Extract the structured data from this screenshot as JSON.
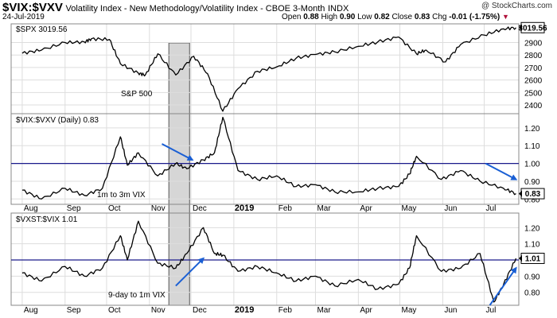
{
  "header": {
    "symbol": "$VIX:$VXV",
    "description": "Volatility Index - New Methodology/Volatility Index - CBOE 3-Month",
    "exchange": "INDX",
    "date": "24-Jul-2019",
    "open_label": "Open",
    "open": "0.88",
    "high_label": "High",
    "high": "0.90",
    "low_label": "Low",
    "low": "0.82",
    "close_label": "Close",
    "close": "0.83",
    "chg_label": "Chg",
    "chg": "-0.01 (-1.75%)",
    "down_marker": "▼",
    "brand": "@ StockCharts.com"
  },
  "chart_data": [
    {
      "type": "line",
      "legend": "$SPX 3019.56",
      "annotation": "S&P 500",
      "last_value_label": "3019.56",
      "y_ticks": [
        "2900",
        "2800",
        "2700",
        "2600",
        "2500",
        "2400"
      ],
      "ylim": [
        2330,
        3050
      ],
      "x": [
        "2018-08-01",
        "2018-08-15",
        "2018-09-01",
        "2018-09-15",
        "2018-09-20",
        "2018-10-03",
        "2018-10-11",
        "2018-10-24",
        "2018-10-29",
        "2018-11-07",
        "2018-11-20",
        "2018-12-03",
        "2018-12-13",
        "2018-12-24",
        "2019-01-04",
        "2019-01-18",
        "2019-02-01",
        "2019-02-15",
        "2019-03-01",
        "2019-03-15",
        "2019-04-01",
        "2019-04-15",
        "2019-04-30",
        "2019-05-13",
        "2019-05-20",
        "2019-06-03",
        "2019-06-14",
        "2019-07-01",
        "2019-07-15",
        "2019-07-24"
      ],
      "values": [
        2815,
        2840,
        2900,
        2905,
        2930,
        2925,
        2730,
        2655,
        2640,
        2810,
        2640,
        2790,
        2650,
        2350,
        2530,
        2670,
        2705,
        2775,
        2805,
        2825,
        2870,
        2905,
        2945,
        2810,
        2840,
        2745,
        2885,
        2960,
        3010,
        3019.56
      ]
    },
    {
      "type": "line",
      "legend": "$VIX:$VXV (Daily) 0.83",
      "annotation": "1m to 3m VIX",
      "last_value_label": "0.83",
      "reference_line": 1.0,
      "y_ticks": [
        "1.20",
        "1.10",
        "1.00",
        "0.90",
        "0.80"
      ],
      "ylim": [
        0.77,
        1.28
      ],
      "x": [
        "2018-08-01",
        "2018-08-15",
        "2018-09-01",
        "2018-09-15",
        "2018-09-28",
        "2018-10-11",
        "2018-10-16",
        "2018-10-24",
        "2018-11-07",
        "2018-11-20",
        "2018-11-28",
        "2018-12-10",
        "2018-12-18",
        "2018-12-24",
        "2019-01-04",
        "2019-01-18",
        "2019-02-01",
        "2019-02-15",
        "2019-03-01",
        "2019-03-15",
        "2019-04-01",
        "2019-04-15",
        "2019-04-30",
        "2019-05-08",
        "2019-05-13",
        "2019-05-31",
        "2019-06-14",
        "2019-06-28",
        "2019-07-15",
        "2019-07-24"
      ],
      "values": [
        0.85,
        0.8,
        0.86,
        0.82,
        0.86,
        1.15,
        0.99,
        1.06,
        0.93,
        1.0,
        0.97,
        1.02,
        1.06,
        1.26,
        0.96,
        0.91,
        0.93,
        0.87,
        0.88,
        0.84,
        0.84,
        0.86,
        0.87,
        0.94,
        1.04,
        0.91,
        0.96,
        0.9,
        0.86,
        0.83
      ]
    },
    {
      "type": "line",
      "legend": "$VXST:$VIX 1.01",
      "annotation": "9-day to 1m VIX",
      "last_value_label": "1.01",
      "reference_line": 1.0,
      "y_ticks": [
        "1.20",
        "1.10",
        "1.00",
        "0.90",
        "0.80"
      ],
      "ylim": [
        0.72,
        1.29
      ],
      "x": [
        "2018-08-01",
        "2018-08-15",
        "2018-09-01",
        "2018-09-15",
        "2018-09-28",
        "2018-10-11",
        "2018-10-16",
        "2018-10-24",
        "2018-11-07",
        "2018-11-20",
        "2018-11-28",
        "2018-12-10",
        "2018-12-18",
        "2018-12-24",
        "2019-01-04",
        "2019-01-18",
        "2019-02-01",
        "2019-02-15",
        "2019-03-01",
        "2019-03-15",
        "2019-04-01",
        "2019-04-15",
        "2019-04-30",
        "2019-05-08",
        "2019-05-13",
        "2019-05-31",
        "2019-06-14",
        "2019-06-28",
        "2019-07-08",
        "2019-07-15",
        "2019-07-24"
      ],
      "values": [
        0.92,
        0.87,
        0.96,
        0.9,
        0.95,
        1.15,
        1.0,
        1.24,
        0.98,
        0.95,
        1.04,
        1.2,
        1.04,
        1.03,
        0.93,
        0.96,
        0.92,
        0.87,
        0.9,
        0.84,
        0.88,
        0.82,
        0.85,
        0.95,
        1.15,
        0.93,
        0.95,
        1.04,
        0.74,
        0.85,
        1.01
      ]
    }
  ],
  "x_axis": {
    "ticks": [
      {
        "label": "Aug",
        "date": "2018-08-01",
        "bold": false
      },
      {
        "label": "Sep",
        "date": "2018-09-01",
        "bold": false
      },
      {
        "label": "Oct",
        "date": "2018-10-01",
        "bold": false
      },
      {
        "label": "Nov",
        "date": "2018-11-01",
        "bold": false
      },
      {
        "label": "Dec",
        "date": "2018-12-01",
        "bold": false
      },
      {
        "label": "2019",
        "date": "2019-01-01",
        "bold": true
      },
      {
        "label": "Feb",
        "date": "2019-02-01",
        "bold": false
      },
      {
        "label": "Mar",
        "date": "2019-03-01",
        "bold": false
      },
      {
        "label": "Apr",
        "date": "2019-04-01",
        "bold": false
      },
      {
        "label": "May",
        "date": "2019-05-01",
        "bold": false
      },
      {
        "label": "Jun",
        "date": "2019-06-01",
        "bold": false
      },
      {
        "label": "Jul",
        "date": "2019-07-01",
        "bold": false
      }
    ],
    "range": [
      "2018-07-24",
      "2019-07-26"
    ]
  },
  "highlight_band": [
    "2018-11-15",
    "2018-11-30"
  ],
  "arrows": [
    {
      "panel": 1,
      "from": [
        "2018-11-10",
        1.11
      ],
      "to": [
        "2018-12-02",
        1.02
      ]
    },
    {
      "panel": 1,
      "from": [
        "2019-07-02",
        1.0
      ],
      "to": [
        "2019-07-24",
        0.91
      ]
    },
    {
      "panel": 2,
      "from": [
        "2018-11-20",
        0.84
      ],
      "to": [
        "2018-12-10",
        1.01
      ]
    },
    {
      "panel": 2,
      "from": [
        "2019-07-05",
        0.72
      ],
      "to": [
        "2019-07-24",
        0.95
      ]
    }
  ],
  "colors": {
    "series": "#000000",
    "reference_line": "#1a1a8c",
    "arrow": "#1a5fd4",
    "band_fill": "#c8c8c8",
    "band_stroke": "#555555",
    "grid": "#dddddd",
    "frame": "#888888"
  }
}
